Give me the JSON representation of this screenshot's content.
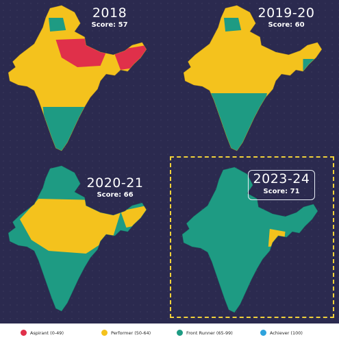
{
  "panels": [
    {
      "year": "2018",
      "score": "Score: 57"
    },
    {
      "year": "2019-20",
      "score": "Score: 60"
    },
    {
      "year": "2020-21",
      "score": "Score: 66"
    },
    {
      "year": "2023-24",
      "score": "Score: 71"
    }
  ],
  "legend": [
    {
      "label": "Aspirant (0-49)",
      "color": "#e0304a"
    },
    {
      "label": "Performer (50-64)",
      "color": "#f4c21d"
    },
    {
      "label": "Front Runner (65-99)",
      "color": "#1e9b83"
    },
    {
      "label": "Achiever (100)",
      "color": "#2fa3dd"
    }
  ],
  "colors": {
    "background": "#2b2a4f",
    "highlight_frame": "#f1d13a"
  }
}
